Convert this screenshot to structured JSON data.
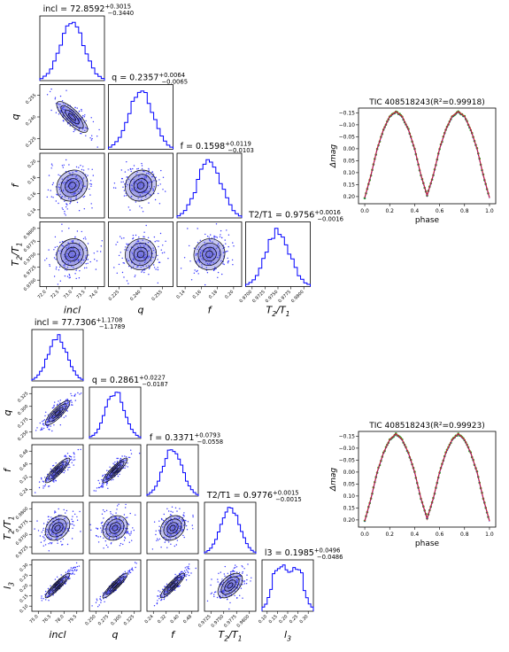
{
  "chart_data": [
    {
      "type": "corner",
      "parameters": [
        {
          "label": "incl",
          "title": "incl = 72.8592",
          "sup": "+0.3015",
          "sub": "−0.3440",
          "range": [
            71.5,
            74.0
          ],
          "ticks": [
            "72.0",
            "72.5",
            "73.0",
            "73.5",
            "74.0"
          ]
        },
        {
          "label": "q",
          "title": "q = 0.2357",
          "sup": "+0.0064",
          "sub": "−0.0065",
          "range": [
            0.218,
            0.262
          ],
          "ticks": [
            "0.225",
            "0.240",
            "0.255"
          ]
        },
        {
          "label": "f",
          "title": "f = 0.1598",
          "sup": "+0.0119",
          "sub": "−0.0103",
          "range": [
            0.125,
            0.205
          ],
          "ticks": [
            "0.14",
            "0.16",
            "0.18",
            "0.20"
          ]
        },
        {
          "label": "T2/T1",
          "title": "T2/T1 = 0.9756",
          "sup": "+0.0016",
          "sub": "−0.0016",
          "range": [
            0.9695,
            0.9805
          ],
          "ticks": [
            "0.9700",
            "0.9725",
            "0.9750",
            "0.9775",
            "0.9800"
          ]
        }
      ]
    },
    {
      "type": "line",
      "title": "TIC 408518243(R²=0.99918)",
      "xlabel": "phase",
      "ylabel": "Δmag",
      "xlim": [
        -0.05,
        1.05
      ],
      "ylim": [
        0.23,
        -0.17
      ],
      "x_ticks": [
        "0.0",
        "0.2",
        "0.4",
        "0.6",
        "0.8",
        "1.0"
      ],
      "y_ticks": [
        "−0.15",
        "−0.10",
        "−0.05",
        "0.00",
        "0.05",
        "0.10",
        "0.15",
        "0.20"
      ],
      "x": [
        0.0,
        0.05,
        0.1,
        0.15,
        0.2,
        0.25,
        0.3,
        0.35,
        0.4,
        0.45,
        0.5,
        0.55,
        0.6,
        0.65,
        0.7,
        0.75,
        0.8,
        0.85,
        0.9,
        0.95,
        1.0
      ],
      "y": [
        0.205,
        0.11,
        0.0,
        -0.08,
        -0.135,
        -0.155,
        -0.135,
        -0.08,
        0.0,
        0.11,
        0.195,
        0.11,
        0.0,
        -0.08,
        -0.135,
        -0.155,
        -0.135,
        -0.08,
        0.0,
        0.11,
        0.205
      ]
    },
    {
      "type": "corner",
      "parameters": [
        {
          "label": "incl",
          "title": "incl = 77.7306",
          "sup": "+1.1708",
          "sub": "−1.1789",
          "range": [
            74.5,
            80.5
          ],
          "ticks": [
            "75.0",
            "76.5",
            "78.0",
            "79.5"
          ]
        },
        {
          "label": "q",
          "title": "q = 0.2861",
          "sup": "+0.0227",
          "sub": "−0.0187",
          "range": [
            0.24,
            0.35
          ],
          "ticks": [
            "0.250",
            "0.275",
            "0.300",
            "0.325"
          ]
        },
        {
          "label": "f",
          "title": "f = 0.3371",
          "sup": "+0.0793",
          "sub": "−0.0558",
          "range": [
            0.2,
            0.5
          ],
          "ticks": [
            "0.24",
            "0.32",
            "0.40",
            "0.48"
          ]
        },
        {
          "label": "T2/T1",
          "title": "T2/T1 = 0.9776",
          "sup": "+0.0015",
          "sub": "−0.0015",
          "range": [
            0.9718,
            0.9828
          ],
          "ticks": [
            "0.9725",
            "0.9750",
            "0.9775",
            "0.9800"
          ]
        },
        {
          "label": "l3",
          "title": "l3 = 0.1985",
          "sup": "+0.0496",
          "sub": "−0.0486",
          "range": [
            0.08,
            0.31
          ],
          "ticks": [
            "0.10",
            "0.15",
            "0.20",
            "0.25",
            "0.30"
          ]
        }
      ]
    },
    {
      "type": "line",
      "title": "TIC 408518243(R²=0.99923)",
      "xlabel": "phase",
      "ylabel": "Δmag",
      "xlim": [
        -0.05,
        1.05
      ],
      "ylim": [
        0.23,
        -0.17
      ],
      "x_ticks": [
        "0.0",
        "0.2",
        "0.4",
        "0.6",
        "0.8",
        "1.0"
      ],
      "y_ticks": [
        "−0.15",
        "−0.10",
        "−0.05",
        "0.00",
        "0.05",
        "0.10",
        "0.15",
        "0.20"
      ],
      "x": [
        0.0,
        0.05,
        0.1,
        0.15,
        0.2,
        0.25,
        0.3,
        0.35,
        0.4,
        0.45,
        0.5,
        0.55,
        0.6,
        0.65,
        0.7,
        0.75,
        0.8,
        0.85,
        0.9,
        0.95,
        1.0
      ],
      "y": [
        0.205,
        0.11,
        0.0,
        -0.08,
        -0.135,
        -0.16,
        -0.135,
        -0.08,
        0.0,
        0.11,
        0.195,
        0.11,
        0.0,
        -0.08,
        -0.135,
        -0.16,
        -0.135,
        -0.08,
        0.0,
        0.11,
        0.205
      ]
    }
  ],
  "colors": {
    "samples": "#0000ff",
    "contour_fill": "#5b5bd6",
    "model": "#d62728",
    "obs": "#2ca02c",
    "points": "#3333ff"
  }
}
